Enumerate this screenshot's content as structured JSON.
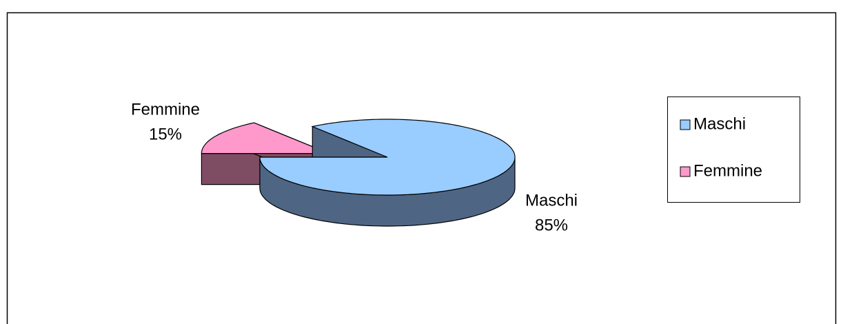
{
  "chart_data": {
    "type": "pie3d",
    "categories": [
      "Maschi",
      "Femmine"
    ],
    "values": [
      85,
      15
    ],
    "value_labels": [
      "85%",
      "15%"
    ],
    "colors": [
      "#99ccff",
      "#ff99cc"
    ],
    "side_colors": [
      "#4f6584",
      "#7f4d63"
    ],
    "legend": "right"
  }
}
